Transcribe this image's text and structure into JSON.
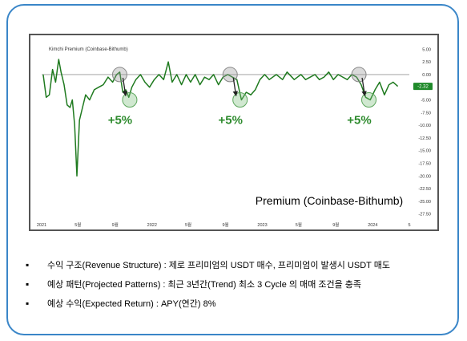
{
  "chart_data": {
    "type": "line",
    "title": "Kimchi Premium (Coinbase-Bithumb)",
    "overlay_label": "Premium (Coinbase-Bithumb)",
    "x_tick_labels": [
      "2021",
      "5월",
      "9월",
      "2022",
      "5월",
      "9월",
      "2023",
      "5월",
      "9월",
      "2024",
      "5"
    ],
    "y_ticks": [
      5.0,
      2.5,
      0.0,
      -2.5,
      -5.0,
      -7.5,
      -10.0,
      -12.5,
      -15.0,
      -17.5,
      -20.0,
      -22.5,
      -25.0,
      -27.5
    ],
    "y_tick_labels": [
      "5.00",
      "2.50",
      "0.00",
      "-2.50",
      "-5.00",
      "-7.50",
      "-10.00",
      "-12.50",
      "-15.00",
      "-17.50",
      "-20.00",
      "-22.50",
      "-25.00",
      "-27.50"
    ],
    "ylim": [
      -28.5,
      6.0
    ],
    "grid": false,
    "colors": {
      "line": "#1f7a1f",
      "zero_line": "#999999",
      "last_value_bg": "#1f8a2a",
      "annotation": "#2e8b2e"
    },
    "last_value_label": "-2.32",
    "series": [
      {
        "x": [
          "2021-01",
          "2021-01",
          "2021-01",
          "2021-02",
          "2021-02",
          "2021-02",
          "2021-03",
          "2021-03",
          "2021-03",
          "2021-04",
          "2021-04",
          "2021-04",
          "2021-04",
          "2021-05",
          "2021-05",
          "2021-05",
          "2021-06",
          "2021-06",
          "2021-07",
          "2021-07",
          "2021-08",
          "2021-08",
          "2021-09",
          "2021-09",
          "2021-09",
          "2021-10",
          "2021-10",
          "2021-10",
          "2021-11",
          "2021-11",
          "2021-12",
          "2021-12",
          "2022-01",
          "2022-01",
          "2022-02",
          "2022-02",
          "2022-03",
          "2022-03",
          "2022-04",
          "2022-04",
          "2022-05",
          "2022-05",
          "2022-06",
          "2022-06",
          "2022-07",
          "2022-07",
          "2022-08",
          "2022-08",
          "2022-09",
          "2022-09",
          "2022-10",
          "2022-10",
          "2022-11",
          "2022-11",
          "2022-12",
          "2022-12",
          "2023-01",
          "2023-01",
          "2023-02",
          "2023-03",
          "2023-03",
          "2023-04",
          "2023-05",
          "2023-05",
          "2023-06",
          "2023-06",
          "2023-07",
          "2023-07",
          "2023-08",
          "2023-08",
          "2023-09",
          "2023-09",
          "2023-10",
          "2023-10",
          "2023-11",
          "2023-11",
          "2023-12",
          "2023-12",
          "2024-01",
          "2024-01",
          "2024-02",
          "2024-02",
          "2024-03",
          "2024-03"
        ],
        "y": [
          0.0,
          -4.5,
          -4.0,
          1.0,
          -1.5,
          3.0,
          0.5,
          -2.0,
          -6.0,
          -6.5,
          -5.0,
          -10.0,
          -20.0,
          -9.0,
          -6.5,
          -4.0,
          -5.0,
          -3.0,
          -2.5,
          -2.0,
          -0.5,
          -1.5,
          0.0,
          0.5,
          -3.5,
          -3.0,
          -4.5,
          -2.5,
          -1.0,
          0.0,
          -1.5,
          -2.5,
          -1.0,
          0.0,
          -1.0,
          2.5,
          -1.5,
          0.0,
          -2.0,
          0.0,
          -1.5,
          0.0,
          -2.0,
          -0.5,
          -1.0,
          0.0,
          -2.0,
          -0.5,
          0.0,
          -0.5,
          -1.0,
          -5.0,
          -3.5,
          -4.0,
          -3.0,
          -1.0,
          0.0,
          -1.0,
          0.0,
          -1.0,
          0.5,
          -1.0,
          0.0,
          -1.0,
          -0.5,
          0.0,
          -1.0,
          -0.5,
          0.5,
          -1.0,
          0.0,
          -0.5,
          -1.0,
          0.0,
          -0.5,
          -2.0,
          -4.5,
          -5.0,
          -3.0,
          -1.5,
          -4.0,
          -2.0,
          -1.5,
          -2.32
        ]
      }
    ],
    "annotations": [
      {
        "label": "+5%",
        "from": "2021-09",
        "to": "2021-10"
      },
      {
        "label": "+5%",
        "from": "2022-09",
        "to": "2022-10"
      },
      {
        "label": "+5%",
        "from": "2023-11",
        "to": "2023-12"
      }
    ]
  },
  "bullets": [
    "수익 구조(Revenue Structure) : 제로 프리미엄의 USDT 매수, 프리미엄이 발생시 USDT 매도",
    "예상 패턴(Projected Patterns) : 최근 3년간(Trend) 최소 3 Cycle 의 매매 조건을 충족",
    "예상 수익(Expected Return) :  APY(연간) 8%"
  ]
}
